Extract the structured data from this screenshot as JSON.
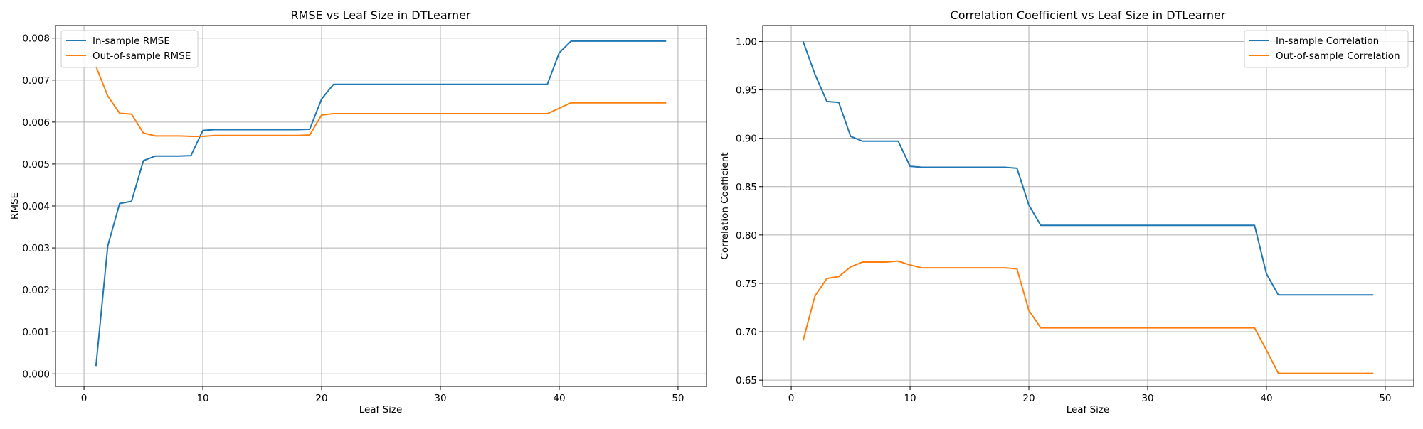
{
  "chart_data": [
    {
      "type": "line",
      "title": "RMSE vs Leaf Size in DTLearner",
      "xlabel": "Leaf Size",
      "ylabel": "RMSE",
      "xlim": [
        -2.4,
        52.4
      ],
      "ylim": [
        -0.0003,
        0.0083
      ],
      "xticks": [
        0,
        10,
        20,
        30,
        40,
        50
      ],
      "yticks": [
        0.0,
        0.001,
        0.002,
        0.003,
        0.004,
        0.005,
        0.006,
        0.007,
        0.008
      ],
      "ytick_decimals": 3,
      "grid": true,
      "legend_position": "upper-left",
      "x": [
        1,
        2,
        3,
        4,
        5,
        6,
        7,
        8,
        9,
        10,
        11,
        12,
        13,
        14,
        15,
        16,
        17,
        18,
        19,
        20,
        21,
        22,
        23,
        24,
        25,
        26,
        27,
        28,
        29,
        30,
        31,
        32,
        33,
        34,
        35,
        36,
        37,
        38,
        39,
        40,
        41,
        42,
        43,
        44,
        45,
        46,
        47,
        48,
        49
      ],
      "series": [
        {
          "name": "In-sample RMSE",
          "color": "#1f77b4",
          "values": [
            0.00017,
            0.00305,
            0.00406,
            0.00411,
            0.00508,
            0.00519,
            0.00519,
            0.00519,
            0.0052,
            0.0058,
            0.00582,
            0.00582,
            0.00582,
            0.00582,
            0.00582,
            0.00582,
            0.00582,
            0.00582,
            0.00583,
            0.00655,
            0.0069,
            0.0069,
            0.0069,
            0.0069,
            0.0069,
            0.0069,
            0.0069,
            0.0069,
            0.0069,
            0.0069,
            0.0069,
            0.0069,
            0.0069,
            0.0069,
            0.0069,
            0.0069,
            0.0069,
            0.0069,
            0.0069,
            0.00765,
            0.00793,
            0.00793,
            0.00793,
            0.00793,
            0.00793,
            0.00793,
            0.00793,
            0.00793,
            0.00793
          ]
        },
        {
          "name": "Out-of-sample RMSE",
          "color": "#ff7f0e",
          "values": [
            0.00733,
            0.00662,
            0.00621,
            0.00619,
            0.00574,
            0.00567,
            0.00567,
            0.00567,
            0.00566,
            0.00566,
            0.00568,
            0.00568,
            0.00568,
            0.00568,
            0.00568,
            0.00568,
            0.00568,
            0.00568,
            0.00569,
            0.00617,
            0.0062,
            0.0062,
            0.0062,
            0.0062,
            0.0062,
            0.0062,
            0.0062,
            0.0062,
            0.0062,
            0.0062,
            0.0062,
            0.0062,
            0.0062,
            0.0062,
            0.0062,
            0.0062,
            0.0062,
            0.0062,
            0.0062,
            0.00633,
            0.00646,
            0.00646,
            0.00646,
            0.00646,
            0.00646,
            0.00646,
            0.00646,
            0.00646,
            0.00646
          ]
        }
      ]
    },
    {
      "type": "line",
      "title": "Correlation Coefficient vs Leaf Size in DTLearner",
      "xlabel": "Leaf Size",
      "ylabel": "Correlation Coefficient",
      "xlim": [
        -2.4,
        52.4
      ],
      "ylim": [
        0.6435,
        1.0165
      ],
      "xticks": [
        0,
        10,
        20,
        30,
        40,
        50
      ],
      "yticks": [
        0.65,
        0.7,
        0.75,
        0.8,
        0.85,
        0.9,
        0.95,
        1.0
      ],
      "ytick_decimals": 2,
      "grid": true,
      "legend_position": "upper-right",
      "x": [
        1,
        2,
        3,
        4,
        5,
        6,
        7,
        8,
        9,
        10,
        11,
        12,
        13,
        14,
        15,
        16,
        17,
        18,
        19,
        20,
        21,
        22,
        23,
        24,
        25,
        26,
        27,
        28,
        29,
        30,
        31,
        32,
        33,
        34,
        35,
        36,
        37,
        38,
        39,
        40,
        41,
        42,
        43,
        44,
        45,
        46,
        47,
        48,
        49
      ],
      "series": [
        {
          "name": "In-sample Correlation",
          "color": "#1f77b4",
          "values": [
            1.0,
            0.966,
            0.938,
            0.937,
            0.902,
            0.897,
            0.897,
            0.897,
            0.897,
            0.871,
            0.87,
            0.87,
            0.87,
            0.87,
            0.87,
            0.87,
            0.87,
            0.87,
            0.869,
            0.831,
            0.81,
            0.81,
            0.81,
            0.81,
            0.81,
            0.81,
            0.81,
            0.81,
            0.81,
            0.81,
            0.81,
            0.81,
            0.81,
            0.81,
            0.81,
            0.81,
            0.81,
            0.81,
            0.81,
            0.76,
            0.738,
            0.738,
            0.738,
            0.738,
            0.738,
            0.738,
            0.738,
            0.738,
            0.738
          ]
        },
        {
          "name": "Out-of-sample Correlation",
          "color": "#ff7f0e",
          "values": [
            0.691,
            0.737,
            0.755,
            0.757,
            0.767,
            0.772,
            0.772,
            0.772,
            0.773,
            0.769,
            0.766,
            0.766,
            0.766,
            0.766,
            0.766,
            0.766,
            0.766,
            0.766,
            0.765,
            0.722,
            0.704,
            0.704,
            0.704,
            0.704,
            0.704,
            0.704,
            0.704,
            0.704,
            0.704,
            0.704,
            0.704,
            0.704,
            0.704,
            0.704,
            0.704,
            0.704,
            0.704,
            0.704,
            0.704,
            0.681,
            0.657,
            0.657,
            0.657,
            0.657,
            0.657,
            0.657,
            0.657,
            0.657,
            0.657
          ]
        }
      ]
    }
  ]
}
